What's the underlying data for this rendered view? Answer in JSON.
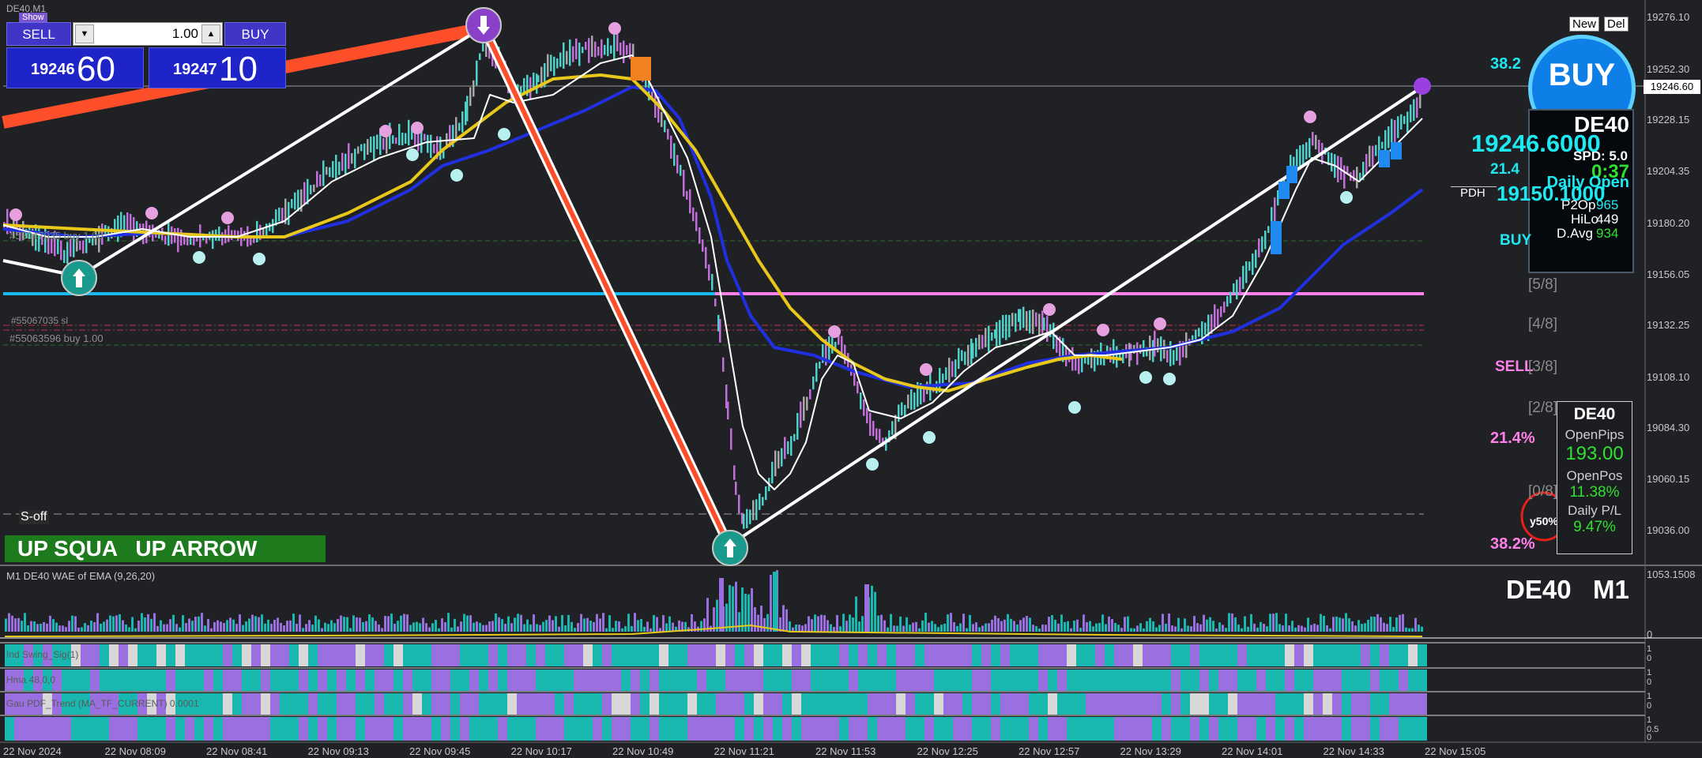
{
  "chart": {
    "symbol_tf": "DE40,M1",
    "show_tag": "Show",
    "last_price_label": "19246.60"
  },
  "trade_panel": {
    "sell_label": "SELL",
    "buy_label": "BUY",
    "lot": "1.00",
    "bid_small": "19246",
    "bid_big": "60",
    "ask_small": "19247",
    "ask_big": "10"
  },
  "price_axis": {
    "labels": [
      "19276.10",
      "19252.30",
      "19228.15",
      "19204.35",
      "19180.20",
      "19156.05",
      "19132.25",
      "19108.10",
      "19084.30",
      "19060.15",
      "19036.00"
    ]
  },
  "time_axis": {
    "labels": [
      "22 Nov 2024",
      "22 Nov 08:09",
      "22 Nov 08:41",
      "22 Nov 09:13",
      "22 Nov 09:45",
      "22 Nov 10:17",
      "22 Nov 10:49",
      "22 Nov 11:21",
      "22 Nov 11:53",
      "22 Nov 12:25",
      "22 Nov 12:57",
      "22 Nov 13:29",
      "22 Nov 14:01",
      "22 Nov 14:33",
      "22 Nov 15:05"
    ]
  },
  "order_labels": {
    "line1": "#55047035 buy 1.00",
    "line2": "#55067035 sl",
    "line3": "#55063596 buy 1.00",
    "s_off": "S-off"
  },
  "signal_banner": {
    "text": "UP SQUA   UP ARROW"
  },
  "right_overlay": {
    "new_btn": "New",
    "del_btn": "Del",
    "big_buy": "BUY",
    "fib_top": "38.2",
    "fib_214": "21.4",
    "fib_bot_214": "21.4%",
    "fib_bot_382": "38.2%",
    "pdh": "PDH",
    "buy_tag": "BUY",
    "sell_tag": "SELL",
    "murray": [
      "[5/8]",
      "[4/8]",
      "[3/8]",
      "[2/8]",
      "[0/8]"
    ],
    "price_big1": "19246.6000",
    "price_big2": "19150.1000",
    "y50": "y50%"
  },
  "info_panel": {
    "symbol": "DE40",
    "spd": "SPD: 5.0",
    "timer": "0:37",
    "daily_open": "Daily Open",
    "p2op_label": "P2Op",
    "p2op_val": "965",
    "hilo_label": "HiLo",
    "hilo_val": "449",
    "davg_label": "D.Avg",
    "davg_val": "934"
  },
  "pl_panel": {
    "symbol": "DE40",
    "open_pips_label": "OpenPips",
    "open_pips_val": "193.00",
    "open_pos_label": "OpenPos",
    "open_pos_val": "11.38%",
    "daily_pl_label": "Daily P/L",
    "daily_pl_val": "9.47%"
  },
  "subwindow": {
    "title": "M1 DE40 WAE of EMA (9,26,20)",
    "symbol_big": "DE40   M1",
    "axis_top": "1053.1508",
    "axis_zero": "0",
    "row_labels": [
      "Ind Swing_Sig(1)",
      "Hma 48,0,0",
      "Gau PDF_Trend (MA_TF_CURRENT) 0.0001"
    ],
    "row_axis": [
      "1",
      "0",
      "1",
      "0",
      "1",
      "0",
      "1",
      "0.5",
      "0"
    ]
  },
  "colors": {
    "background": "#1f2125",
    "bull_bar": "#4fd0c8",
    "bear_bar": "#c070d8",
    "neutral_bar": "#a8a8a8",
    "ema_fast": "#ffffff",
    "ema_slow": "#2030e0",
    "ema_yellow": "#e8c81a",
    "trend_red": "#ff4e2a",
    "support_line": "#18b8f0",
    "pink_line": "#ff80e8",
    "histo_teal": "#18b8b0",
    "histo_purple": "#9a70e0",
    "cyan_text": "#1ee8f0",
    "green_text": "#30e030"
  }
}
